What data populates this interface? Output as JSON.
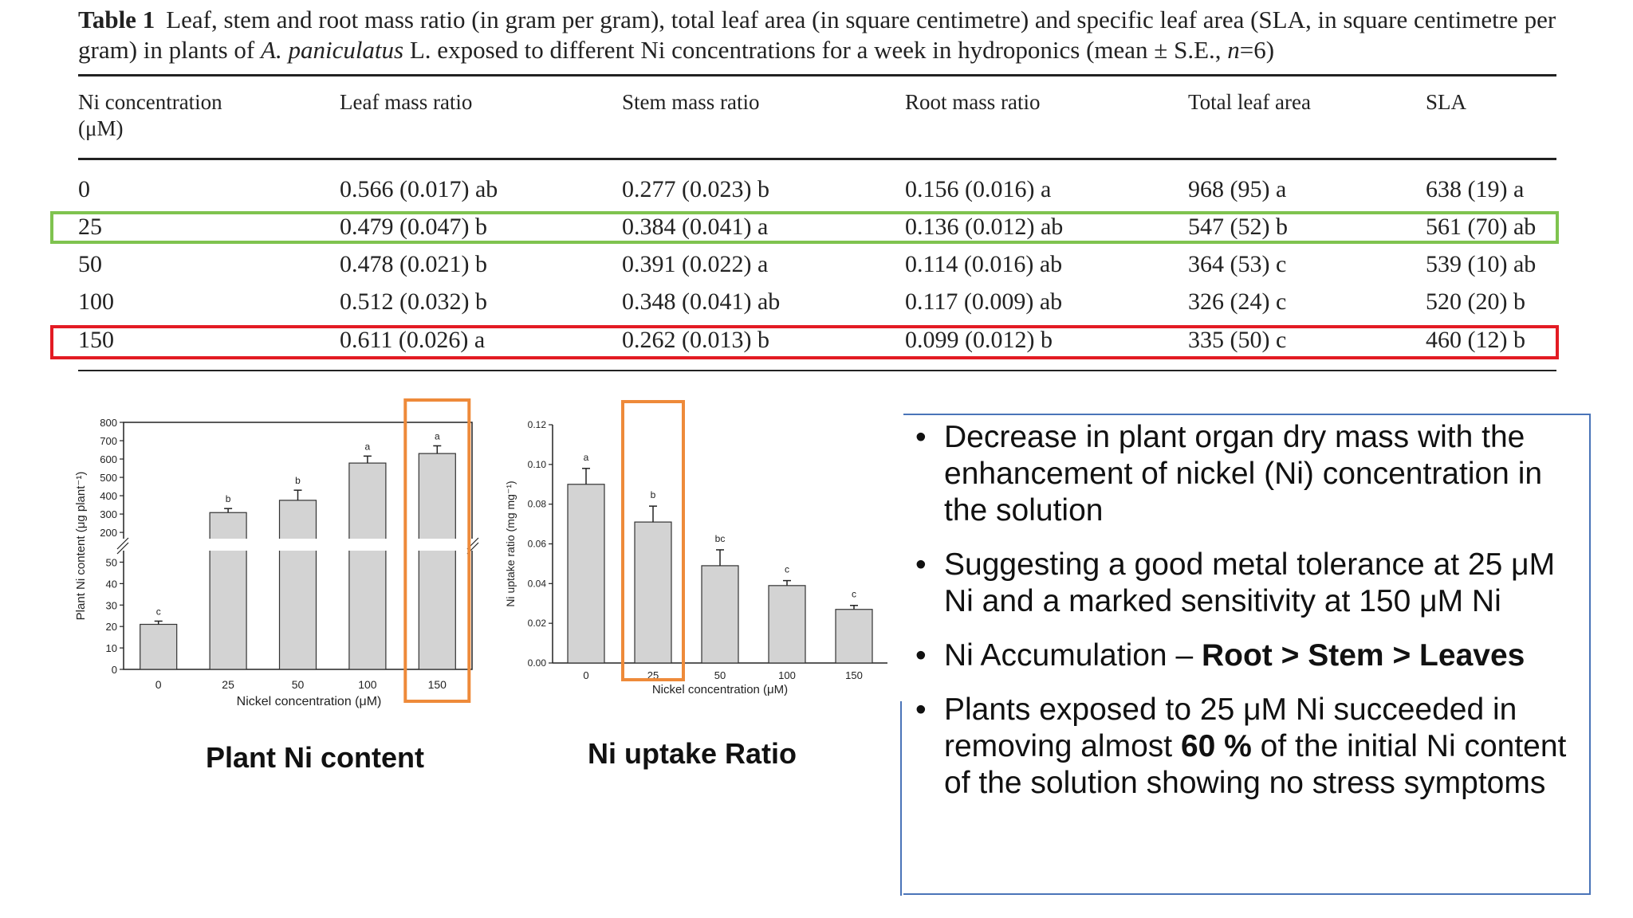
{
  "caption": {
    "label": "Table 1",
    "text_a": "Leaf, stem and root mass ratio (in gram per gram), total leaf area (in square centimetre) and specific leaf area (SLA, in square centimetre per gram) in plants of ",
    "species": "A. paniculatus",
    "text_b": " L. exposed to different Ni concentrations for a week in hydroponics (mean ± S.E., ",
    "n_var": "n",
    "text_c": "=6)"
  },
  "table": {
    "headers": [
      "Ni concentration",
      "(μM)",
      "Leaf mass ratio",
      "Stem mass ratio",
      "Root mass ratio",
      "Total leaf area",
      "SLA"
    ],
    "rows": [
      [
        "0",
        "0.566 (0.017) ab",
        "0.277 (0.023) b",
        "0.156 (0.016) a",
        "968 (95) a",
        "638 (19) a"
      ],
      [
        "25",
        "0.479 (0.047) b",
        "0.384 (0.041) a",
        "0.136 (0.012) ab",
        "547 (52) b",
        "561 (70) ab"
      ],
      [
        "50",
        "0.478 (0.021) b",
        "0.391 (0.022) a",
        "0.114 (0.016) ab",
        "364 (53) c",
        "539 (10) ab"
      ],
      [
        "100",
        "0.512 (0.032) b",
        "0.348 (0.041) ab",
        "0.117 (0.009) ab",
        "326 (24) c",
        "520 (20) b"
      ],
      [
        "150",
        "0.611 (0.026) a",
        "0.262 (0.013) b",
        "0.099 (0.012) b",
        "335 (50) c",
        "460 (12) b"
      ]
    ],
    "highlight_green": "#7fc34f",
    "highlight_red": "#e31b23"
  },
  "chart_data": [
    {
      "type": "bar",
      "title": "Plant Ni content",
      "xlabel": "Nickel concentration (μM)",
      "ylabel": "Plant Ni content (μg plant⁻¹)",
      "categories": [
        "0",
        "25",
        "50",
        "100",
        "150"
      ],
      "values": [
        21,
        308,
        375,
        578,
        630
      ],
      "errors": [
        1.5,
        22,
        55,
        38,
        42
      ],
      "letters": [
        "c",
        "b",
        "b",
        "a",
        "a"
      ],
      "axis_break": [
        55,
        170
      ],
      "yticks_lower": [
        0,
        10,
        20,
        30,
        40,
        50
      ],
      "yticks_upper": [
        200,
        300,
        400,
        500,
        600,
        700,
        800
      ],
      "highlight_category": "150",
      "highlight_color": "#ee8a3a",
      "bar_color": "#d3d3d3"
    },
    {
      "type": "bar",
      "title": "Ni uptake Ratio",
      "xlabel": "Nickel concentration (μM)",
      "ylabel": "Ni uptake ratio (mg mg⁻¹)",
      "categories": [
        "0",
        "25",
        "50",
        "100",
        "150"
      ],
      "values": [
        0.09,
        0.071,
        0.049,
        0.039,
        0.027
      ],
      "errors": [
        0.008,
        0.008,
        0.008,
        0.0025,
        0.002
      ],
      "letters": [
        "a",
        "b",
        "bc",
        "c",
        "c"
      ],
      "ylim": [
        0,
        0.12
      ],
      "yticks": [
        "0.00",
        "0.02",
        "0.04",
        "0.06",
        "0.08",
        "0.10",
        "0.12"
      ],
      "highlight_category": "25",
      "highlight_color": "#ee8a3a",
      "bar_color": "#d3d3d3"
    }
  ],
  "bullets": [
    {
      "text": "Decrease in plant organ dry mass with the enhancement of nickel (Ni) concentration in the solution"
    },
    {
      "text": "Suggesting a good metal tolerance at 25 μM Ni and a marked sensitivity at 150 μM Ni"
    },
    {
      "prefix": "Ni Accumulation – ",
      "bold": "Root > Stem > Leaves"
    },
    {
      "prefix": "Plants exposed to 25 μM Ni succeeded in removing almost ",
      "bold": "60 %",
      "suffix": " of the initial Ni content of the solution showing no stress symptoms"
    }
  ],
  "bullet_symbol": "•",
  "box_color": "#4a74b8"
}
